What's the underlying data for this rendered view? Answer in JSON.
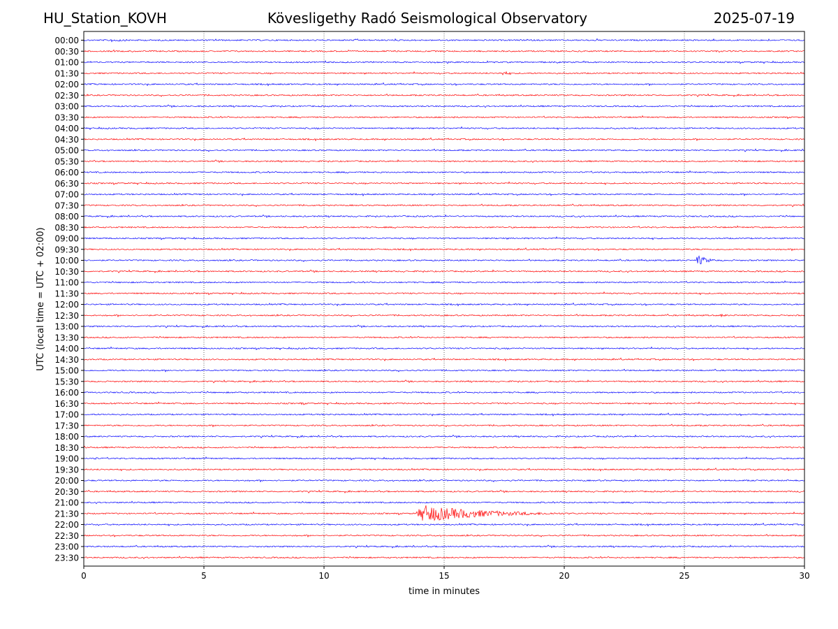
{
  "header": {
    "station": "HU_Station_KOVH",
    "title": "Kövesligethy Radó Seismological Observatory",
    "date": "2025-07-19"
  },
  "colors": {
    "even_rows": "#0000ff",
    "odd_rows": "#ff0000",
    "grid": "#000000"
  },
  "chart_data": {
    "type": "line",
    "title": "Kövesligethy Radó Seismological Observatory",
    "xlabel": "time in minutes",
    "ylabel": "UTC (local time = UTC + 02:00)",
    "xlim": [
      0,
      30
    ],
    "x_ticks": [
      "0",
      "5",
      "10",
      "15",
      "20",
      "25",
      "30"
    ],
    "vertical_gridlines_at": [
      5,
      10,
      15,
      20,
      25
    ],
    "grid": "vertical dotted lines",
    "row_labels": [
      "00:00",
      "00:30",
      "01:00",
      "01:30",
      "02:00",
      "02:30",
      "03:00",
      "03:30",
      "04:00",
      "04:30",
      "05:00",
      "05:30",
      "06:00",
      "06:30",
      "07:00",
      "07:30",
      "08:00",
      "08:30",
      "09:00",
      "09:30",
      "10:00",
      "10:30",
      "11:00",
      "11:30",
      "12:00",
      "12:30",
      "13:00",
      "13:30",
      "14:00",
      "14:30",
      "15:00",
      "15:30",
      "16:00",
      "16:30",
      "17:00",
      "17:30",
      "18:00",
      "18:30",
      "19:00",
      "19:30",
      "20:00",
      "20:30",
      "21:00",
      "21:30",
      "22:00",
      "22:30",
      "23:00",
      "23:30"
    ],
    "row_color_pattern": "alternating blue/red starting with blue",
    "events": [
      {
        "row": "00:00",
        "start_min": 1.0,
        "duration_min": 2.5,
        "amplitude": 3
      },
      {
        "row": "01:30",
        "start_min": 17.4,
        "duration_min": 1.1,
        "amplitude": 4
      },
      {
        "row": "10:00",
        "start_min": 25.5,
        "duration_min": 1.3,
        "amplitude": 9
      },
      {
        "row": "12:30",
        "start_min": 26.5,
        "duration_min": 0.8,
        "amplitude": 3
      },
      {
        "row": "16:30",
        "start_min": 9.0,
        "duration_min": 0.8,
        "amplitude": 2.5
      },
      {
        "row": "19:00",
        "start_min": 0.4,
        "duration_min": 0.6,
        "amplitude": 3
      },
      {
        "row": "21:30",
        "start_min": 13.85,
        "duration_min": 8.0,
        "amplitude": 14
      }
    ]
  }
}
